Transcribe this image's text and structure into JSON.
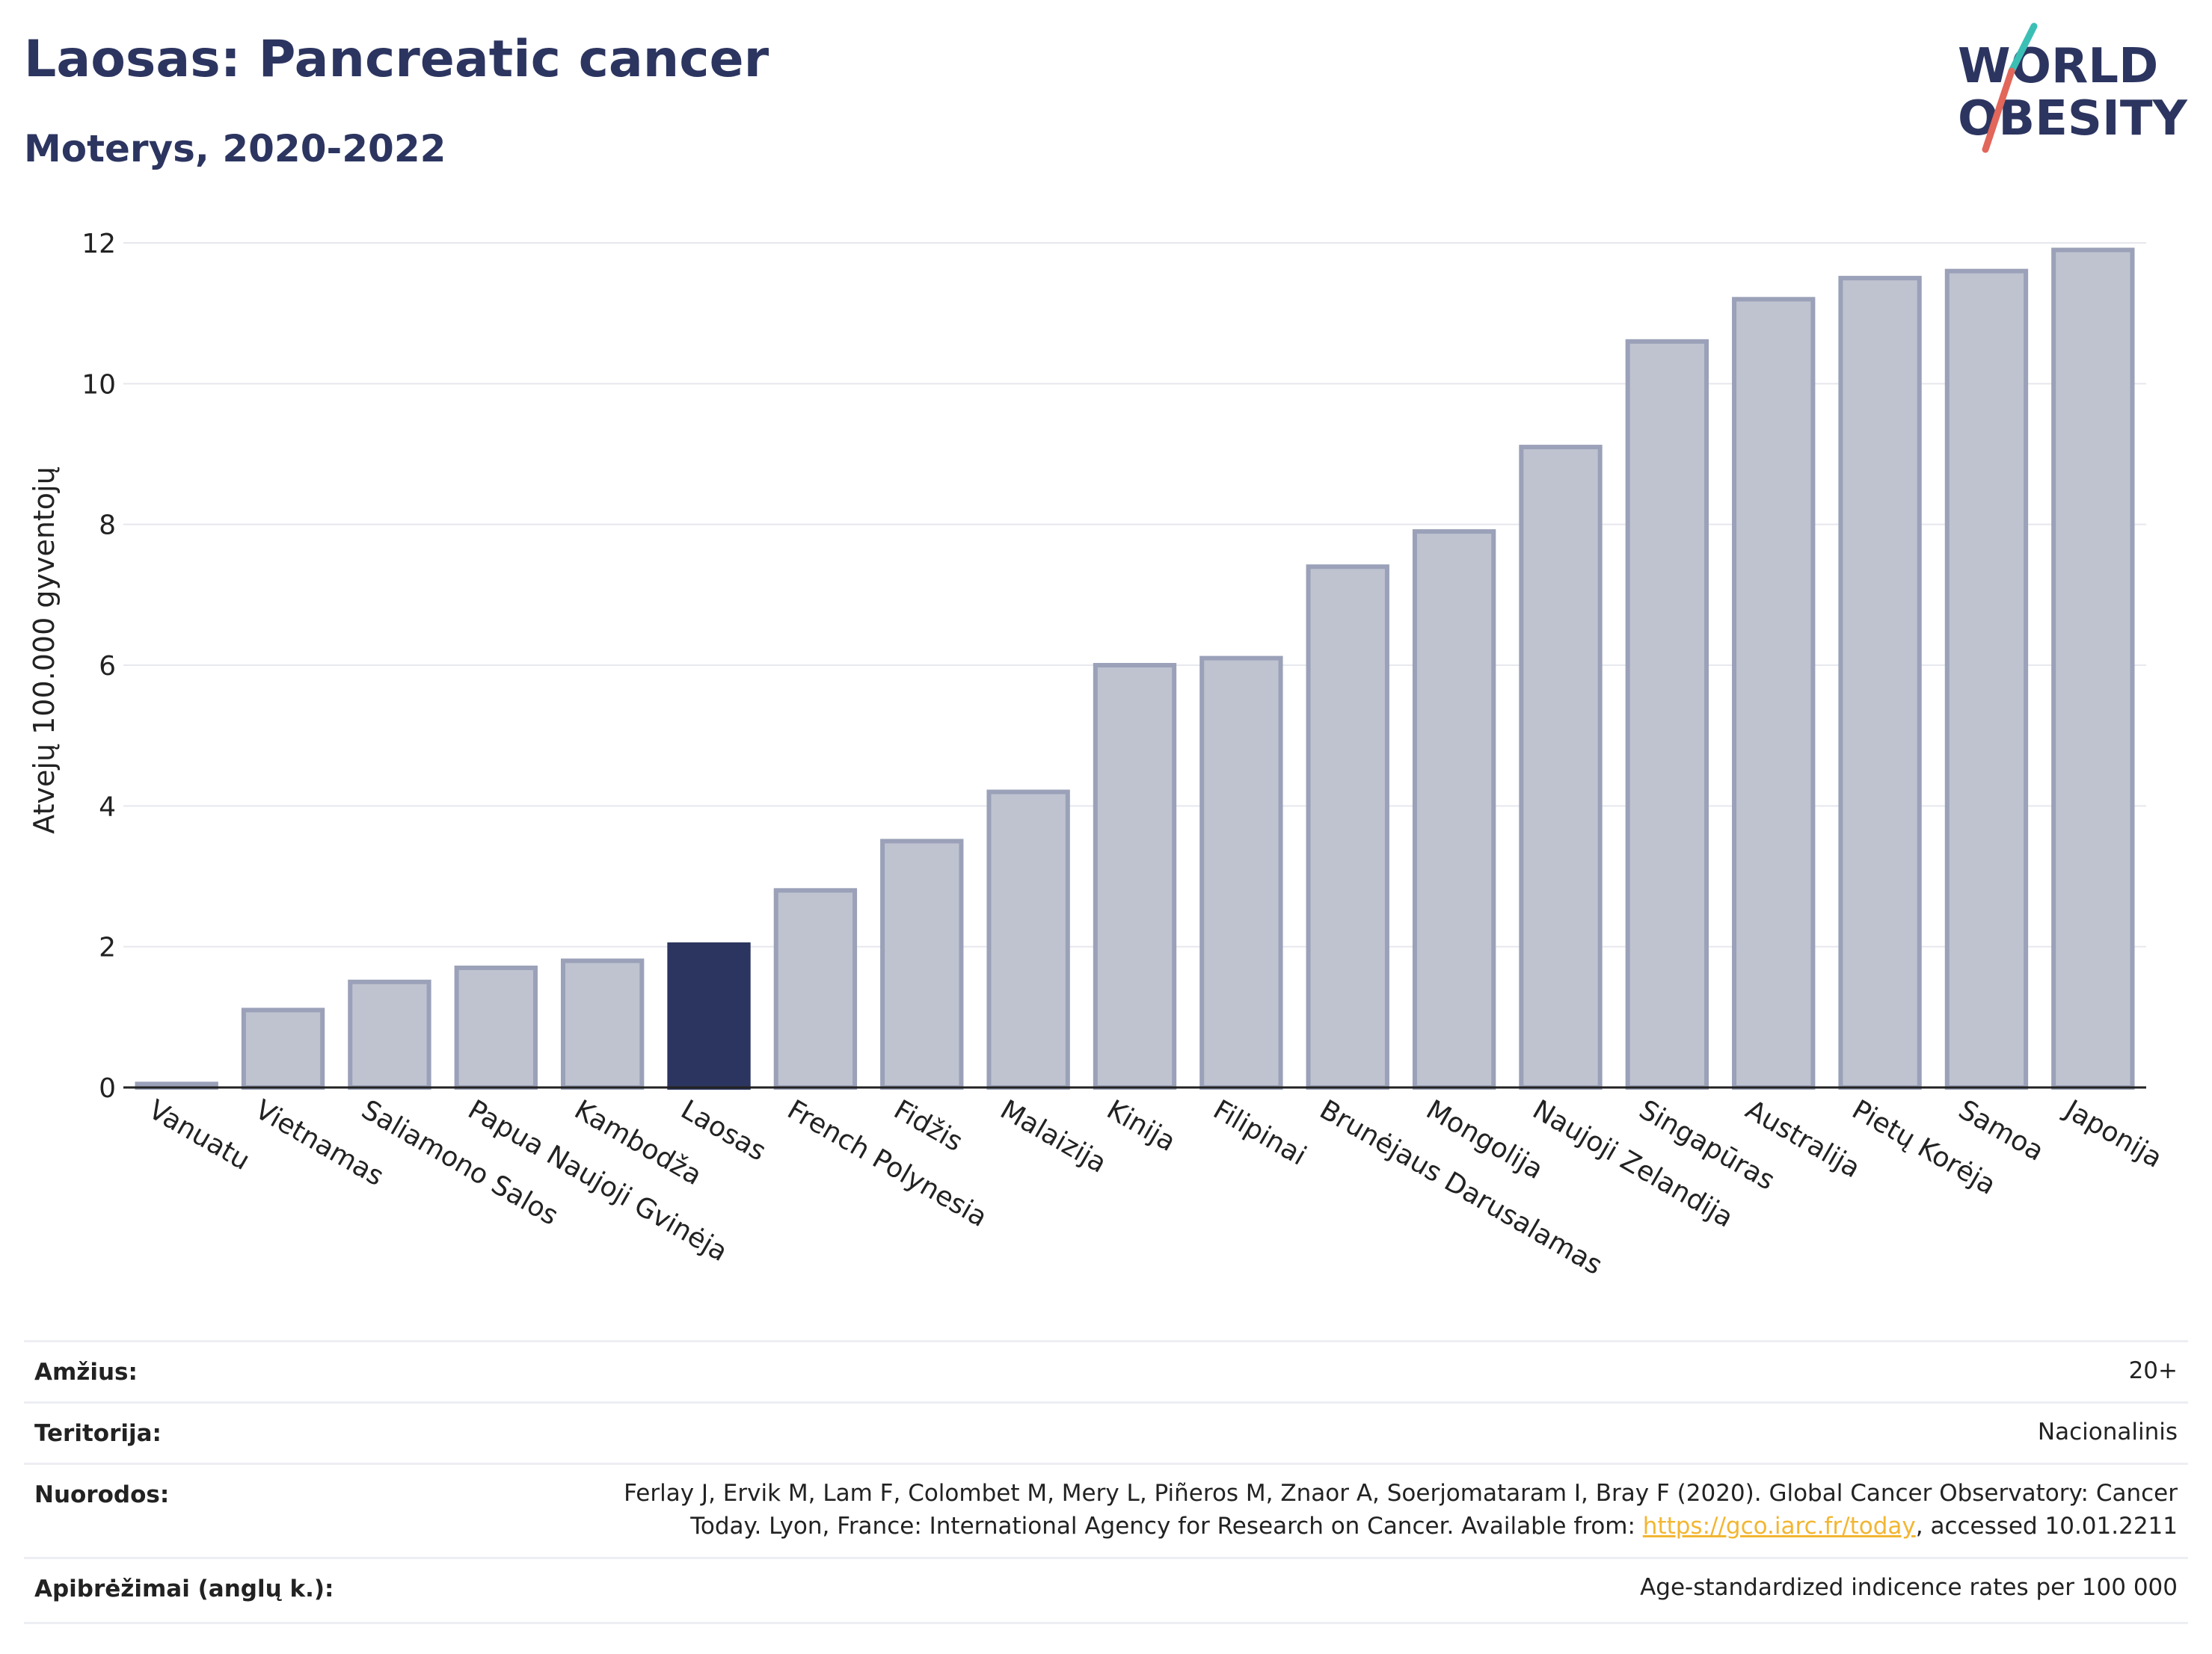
{
  "header": {
    "title": "Laosas: Pancreatic cancer",
    "subtitle": "Moterys, 2020-2022"
  },
  "logo": {
    "line1": "WORLD",
    "line2": "OBESITY",
    "colors": {
      "text": "#2c3560",
      "slash_teal": "#3bbfb5",
      "slash_red": "#e2665a"
    }
  },
  "chart_data": {
    "type": "bar",
    "ylabel": "Atvejų 100.000 gyventojų",
    "ylim": [
      0,
      12
    ],
    "yticks": [
      "0",
      "2",
      "4",
      "6",
      "8",
      "10",
      "12"
    ],
    "grid": true,
    "highlight": "Laosas",
    "colors": {
      "bar": "#bfc3d0",
      "bar_edge": "#9aa1b8",
      "highlight": "#2c3560"
    },
    "categories": [
      "Vanuatu",
      "Vietnamas",
      "Saliamono Salos",
      "Papua Naujoji Gvinėja",
      "Kambodža",
      "Laosas",
      "French Polynesia",
      "Fidžis",
      "Malaizija",
      "Kinija",
      "Filipinai",
      "Brunėjaus Darusalamas",
      "Mongolija",
      "Naujoji Zelandija",
      "Singapūras",
      "Australija",
      "Pietų Korėja",
      "Samoa",
      "Japonija"
    ],
    "values": [
      0.05,
      1.1,
      1.5,
      1.7,
      1.8,
      2.03,
      2.8,
      3.5,
      4.2,
      6.0,
      6.1,
      7.4,
      7.9,
      9.1,
      10.6,
      11.2,
      11.5,
      11.6,
      11.9
    ]
  },
  "info": {
    "age_label": "Amžius:",
    "age_value": "20+",
    "territory_label": "Teritorija:",
    "territory_value": "Nacionalinis",
    "refs_label": "Nuorodos:",
    "refs_line1": "Ferlay J, Ervik M, Lam F, Colombet M, Mery L, Piñeros M, Znaor A, Soerjomataram I, Bray F (2020). Global Cancer Observatory: Cancer",
    "refs_line2_pre": "Today. Lyon, France: International Agency for Research on Cancer. Available from: ",
    "refs_link": "https://gco.iarc.fr/today",
    "refs_line2_post": ", accessed 10.01.2211",
    "defs_label": "Apibrėžimai (anglų k.):",
    "defs_value": "Age-standardized indicence rates per 100 000"
  }
}
